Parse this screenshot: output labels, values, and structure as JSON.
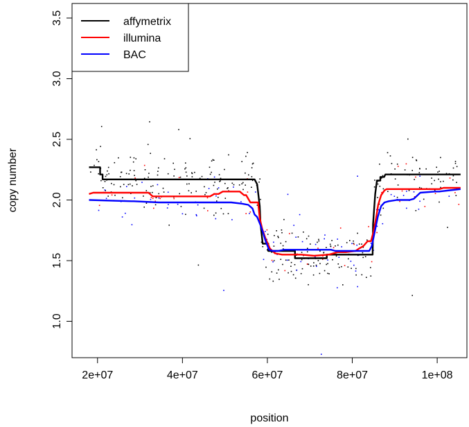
{
  "chart_data": {
    "type": "line",
    "title": "",
    "xlabel": "position",
    "ylabel": "copy number",
    "xlim": [
      14000000,
      107000000
    ],
    "ylim": [
      0.7,
      3.62
    ],
    "x_ticks": [
      20000000,
      40000000,
      60000000,
      80000000,
      100000000
    ],
    "x_tick_labels": [
      "2e+07",
      "4e+07",
      "6e+07",
      "8e+07",
      "1e+08"
    ],
    "y_ticks": [
      1.0,
      1.5,
      2.0,
      2.5,
      3.0,
      3.5
    ],
    "y_tick_labels": [
      "1.0",
      "1.5",
      "2.0",
      "2.5",
      "3.0",
      "3.5"
    ],
    "grid": false,
    "legend_position": "top-left",
    "series": [
      {
        "name": "affymetrix",
        "color": "#000000",
        "x": [
          18000000,
          20600000,
          20600000,
          21200000,
          21200000,
          57000000,
          57600000,
          58200000,
          58400000,
          58900000,
          59000000,
          60200000,
          60200000,
          66500000,
          66500000,
          74000000,
          74000000,
          84800000,
          84900000,
          85400000,
          85800000,
          86600000,
          86600000,
          87500000,
          87800000,
          105500000
        ],
        "y": [
          2.27,
          2.27,
          2.21,
          2.21,
          2.17,
          2.17,
          2.13,
          1.95,
          1.8,
          1.64,
          1.64,
          1.64,
          1.58,
          1.58,
          1.52,
          1.52,
          1.55,
          1.55,
          1.8,
          2.05,
          2.16,
          2.16,
          2.19,
          2.19,
          2.21,
          2.21
        ]
      },
      {
        "name": "illumina",
        "color": "#ff0000",
        "x": [
          18000000,
          19000000,
          32000000,
          33000000,
          46500000,
          47500000,
          48500000,
          49500000,
          53500000,
          54500000,
          55000000,
          56000000,
          57500000,
          57800000,
          58200000,
          58800000,
          59600000,
          60600000,
          61800000,
          63500000,
          68000000,
          71000000,
          74500000,
          76500000,
          78500000,
          80800000,
          81600000,
          82600000,
          83600000,
          84400000,
          85000000,
          85600000,
          86100000,
          86800000,
          87600000,
          88100000,
          90000000,
          94000000,
          95500000,
          96500000,
          100500000,
          101500000,
          105500000
        ],
        "y": [
          2.05,
          2.06,
          2.06,
          2.03,
          2.03,
          2.05,
          2.05,
          2.07,
          2.07,
          2.04,
          2.04,
          1.98,
          1.98,
          1.98,
          1.85,
          1.76,
          1.68,
          1.6,
          1.56,
          1.55,
          1.55,
          1.54,
          1.55,
          1.57,
          1.57,
          1.58,
          1.6,
          1.62,
          1.66,
          1.66,
          1.74,
          1.85,
          1.96,
          2.04,
          2.08,
          2.09,
          2.09,
          2.09,
          2.09,
          2.09,
          2.09,
          2.1,
          2.1
        ]
      },
      {
        "name": "BAC",
        "color": "#0000ff",
        "x": [
          18000000,
          28000000,
          28500000,
          34500000,
          35500000,
          48000000,
          49000000,
          51500000,
          54000000,
          55500000,
          56500000,
          57000000,
          57600000,
          58300000,
          58900000,
          59600000,
          60400000,
          61200000,
          62500000,
          64000000,
          68000000,
          75000000,
          76000000,
          84000000,
          84600000,
          85300000,
          86000000,
          86800000,
          87600000,
          88600000,
          90500000,
          92500000,
          93500000,
          94500000,
          95400000,
          96000000,
          99500000,
          100500000,
          103000000,
          105500000
        ],
        "y": [
          2.0,
          1.99,
          1.99,
          1.98,
          1.98,
          1.98,
          1.98,
          1.98,
          1.97,
          1.96,
          1.93,
          1.88,
          1.86,
          1.8,
          1.74,
          1.66,
          1.59,
          1.58,
          1.58,
          1.59,
          1.59,
          1.59,
          1.58,
          1.58,
          1.62,
          1.74,
          1.86,
          1.95,
          1.98,
          1.99,
          2.0,
          2.0,
          2.0,
          2.01,
          2.04,
          2.06,
          2.07,
          2.07,
          2.08,
          2.09
        ]
      }
    ]
  }
}
